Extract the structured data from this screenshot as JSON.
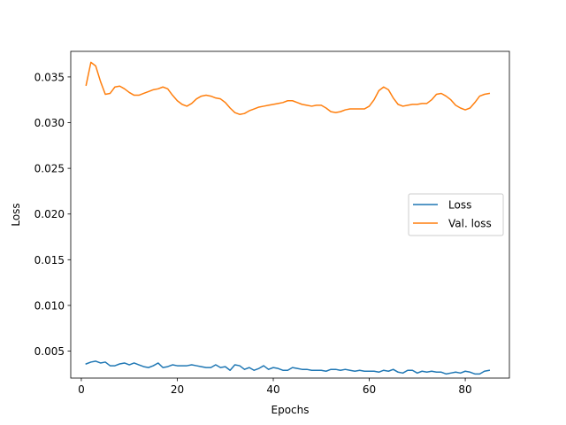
{
  "chart_data": {
    "type": "line",
    "xlabel": "Epochs",
    "ylabel": "Loss",
    "xlim": [
      -2.2,
      89.2
    ],
    "ylim": [
      0.00205,
      0.0378
    ],
    "xticks": [
      0,
      20,
      40,
      60,
      80
    ],
    "yticks": [
      0.005,
      0.01,
      0.015,
      0.02,
      0.025,
      0.03,
      0.035
    ],
    "ytick_labels": [
      "0.005",
      "0.010",
      "0.015",
      "0.020",
      "0.025",
      "0.030",
      "0.035"
    ],
    "grid": false,
    "legend_position": "center-right",
    "series": [
      {
        "name": "Loss",
        "color": "#1f77b4",
        "x": [
          1,
          2,
          3,
          4,
          5,
          6,
          7,
          8,
          9,
          10,
          11,
          12,
          13,
          14,
          15,
          16,
          17,
          18,
          19,
          20,
          21,
          22,
          23,
          24,
          25,
          26,
          27,
          28,
          29,
          30,
          31,
          32,
          33,
          34,
          35,
          36,
          37,
          38,
          39,
          40,
          41,
          42,
          43,
          44,
          45,
          46,
          47,
          48,
          49,
          50,
          51,
          52,
          53,
          54,
          55,
          56,
          57,
          58,
          59,
          60,
          61,
          62,
          63,
          64,
          65,
          66,
          67,
          68,
          69,
          70,
          71,
          72,
          73,
          74,
          75,
          76,
          77,
          78,
          79,
          80,
          81,
          82,
          83,
          84,
          85
        ],
        "y": [
          0.0036,
          0.0038,
          0.0039,
          0.0037,
          0.0038,
          0.0034,
          0.0034,
          0.0036,
          0.0037,
          0.0035,
          0.0037,
          0.0035,
          0.0033,
          0.0032,
          0.0034,
          0.0037,
          0.0032,
          0.0033,
          0.0035,
          0.0034,
          0.0034,
          0.0034,
          0.0035,
          0.0034,
          0.0033,
          0.0032,
          0.0032,
          0.0035,
          0.0032,
          0.0033,
          0.0029,
          0.0035,
          0.0034,
          0.003,
          0.0032,
          0.0029,
          0.0031,
          0.0034,
          0.003,
          0.0032,
          0.0031,
          0.0029,
          0.0029,
          0.0032,
          0.0031,
          0.003,
          0.003,
          0.0029,
          0.0029,
          0.0029,
          0.0028,
          0.003,
          0.003,
          0.0029,
          0.003,
          0.0029,
          0.0028,
          0.0029,
          0.0028,
          0.0028,
          0.0028,
          0.0027,
          0.0029,
          0.0028,
          0.003,
          0.0027,
          0.0026,
          0.0029,
          0.0029,
          0.0026,
          0.0028,
          0.0027,
          0.0028,
          0.0027,
          0.0027,
          0.0025,
          0.0026,
          0.0027,
          0.0026,
          0.0028,
          0.0027,
          0.0025,
          0.0025,
          0.0028,
          0.0029
        ]
      },
      {
        "name": "Val. loss",
        "color": "#ff7f0e",
        "x": [
          1,
          2,
          3,
          4,
          5,
          6,
          7,
          8,
          9,
          10,
          11,
          12,
          13,
          14,
          15,
          16,
          17,
          18,
          19,
          20,
          21,
          22,
          23,
          24,
          25,
          26,
          27,
          28,
          29,
          30,
          31,
          32,
          33,
          34,
          35,
          36,
          37,
          38,
          39,
          40,
          41,
          42,
          43,
          44,
          45,
          46,
          47,
          48,
          49,
          50,
          51,
          52,
          53,
          54,
          55,
          56,
          57,
          58,
          59,
          60,
          61,
          62,
          63,
          64,
          65,
          66,
          67,
          68,
          69,
          70,
          71,
          72,
          73,
          74,
          75,
          76,
          77,
          78,
          79,
          80,
          81,
          82,
          83,
          84,
          85
        ],
        "y": [
          0.0341,
          0.0366,
          0.0362,
          0.0345,
          0.0331,
          0.0332,
          0.0339,
          0.034,
          0.0337,
          0.0333,
          0.033,
          0.033,
          0.0332,
          0.0334,
          0.0336,
          0.0337,
          0.0339,
          0.0337,
          0.033,
          0.0324,
          0.032,
          0.0318,
          0.0321,
          0.0326,
          0.0329,
          0.033,
          0.0329,
          0.0327,
          0.0326,
          0.0322,
          0.0316,
          0.0311,
          0.0309,
          0.031,
          0.0313,
          0.0315,
          0.0317,
          0.0318,
          0.0319,
          0.032,
          0.0321,
          0.0322,
          0.0324,
          0.0324,
          0.0322,
          0.032,
          0.0319,
          0.0318,
          0.0319,
          0.0319,
          0.0316,
          0.0312,
          0.0311,
          0.0312,
          0.0314,
          0.0315,
          0.0315,
          0.0315,
          0.0315,
          0.0318,
          0.0325,
          0.0335,
          0.0339,
          0.0336,
          0.0327,
          0.032,
          0.0318,
          0.0319,
          0.032,
          0.032,
          0.0321,
          0.0321,
          0.0325,
          0.0331,
          0.0332,
          0.0329,
          0.0325,
          0.0319,
          0.0316,
          0.0314,
          0.0316,
          0.0322,
          0.0329,
          0.0331,
          0.0332
        ]
      }
    ]
  }
}
